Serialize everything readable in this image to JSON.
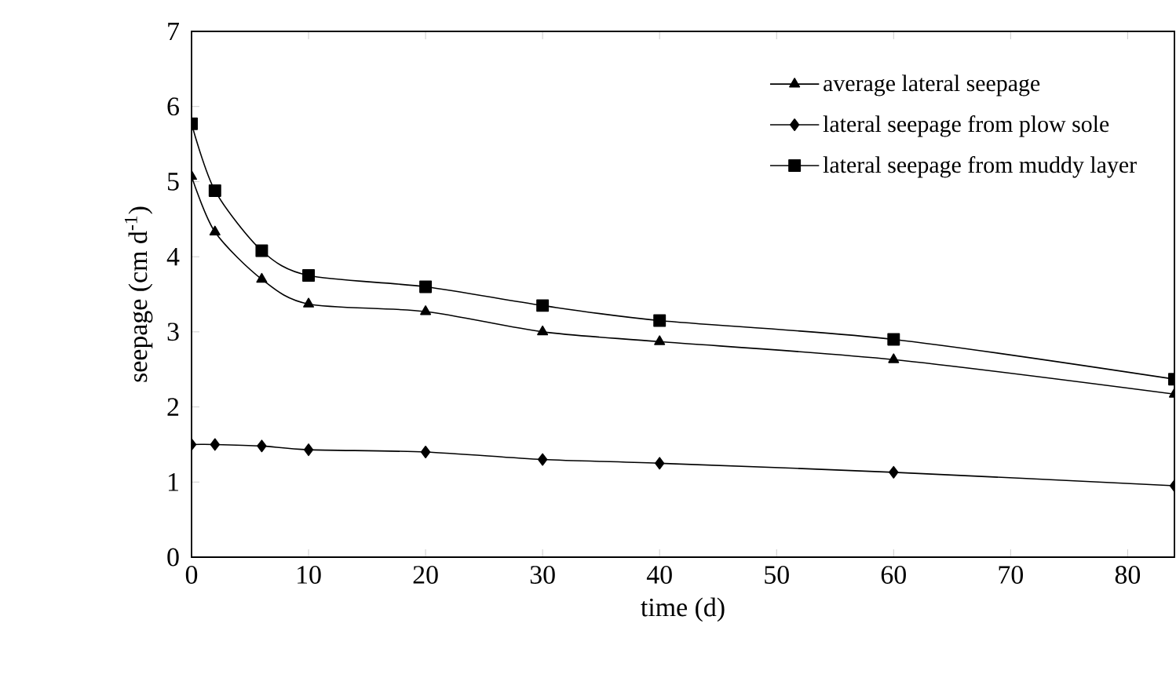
{
  "chart_data": {
    "type": "line",
    "xlabel": "time (d)",
    "ylabel": "seepage (cm d$^{-1}$)",
    "xlim": [
      0,
      84
    ],
    "xticks": [
      0,
      10,
      20,
      30,
      40,
      50,
      60,
      70,
      80
    ],
    "ylim": [
      0,
      7
    ],
    "yticks": [
      0,
      1,
      2,
      3,
      4,
      5,
      6,
      7
    ],
    "grid": false,
    "legend": "top right",
    "line_style": "solid",
    "series": [
      {
        "name": "average lateral seepage",
        "color": "#000000",
        "marker": "triangle",
        "x": [
          0,
          2,
          6,
          10,
          20,
          30,
          40,
          60,
          84
        ],
        "values": [
          5.07,
          4.33,
          3.7,
          3.37,
          3.27,
          3.0,
          2.87,
          2.63,
          2.17
        ]
      },
      {
        "name": "lateral seepage from plow sole",
        "color": "#000000",
        "marker": "diamond",
        "x": [
          0,
          2,
          6,
          10,
          20,
          30,
          40,
          60,
          84
        ],
        "values": [
          1.5,
          1.5,
          1.48,
          1.43,
          1.4,
          1.3,
          1.25,
          1.13,
          0.95
        ]
      },
      {
        "name": "lateral seepage from muddy layer",
        "color": "#000000",
        "marker": "square",
        "x": [
          0,
          2,
          6,
          10,
          20,
          30,
          40,
          60,
          84
        ],
        "values": [
          5.77,
          4.88,
          4.08,
          3.75,
          3.6,
          3.35,
          3.15,
          2.9,
          2.37
        ]
      }
    ]
  }
}
